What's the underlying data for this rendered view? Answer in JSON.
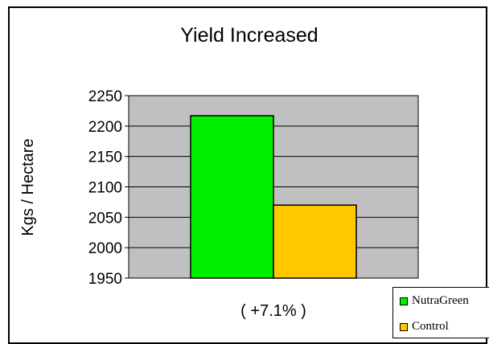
{
  "chart_data": {
    "type": "bar",
    "title": "Yield Increased",
    "ylabel": "Kgs / Hectare",
    "xlabel": "",
    "subtitle": "( +7.1% )",
    "ylim": [
      1950,
      2250
    ],
    "yticks": [
      1950,
      2000,
      2050,
      2100,
      2150,
      2200,
      2250
    ],
    "grid": true,
    "legend_placement": "bottom-right",
    "series": [
      {
        "name": "NutraGreen",
        "values": [
          2217
        ],
        "color": "#00f000"
      },
      {
        "name": "Control",
        "values": [
          2070
        ],
        "color": "#ffc800"
      }
    ],
    "plot_background": "#c0c0c0"
  }
}
